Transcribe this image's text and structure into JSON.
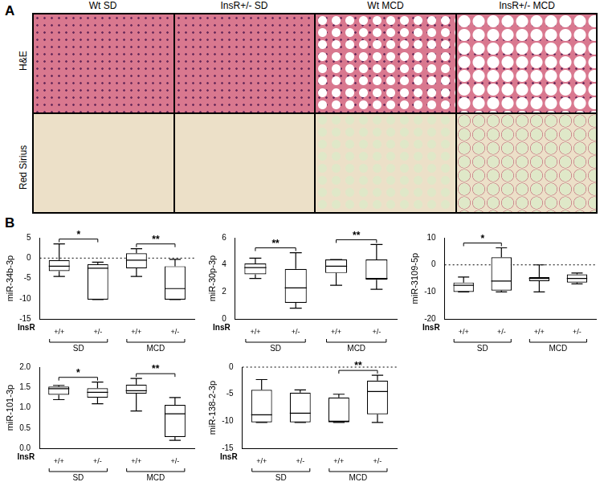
{
  "figure": {
    "panel_labels": [
      "A",
      "B"
    ],
    "histology": {
      "columns": [
        "Wt SD",
        "InsR+/- SD",
        "Wt MCD",
        "InsR+/- MCD"
      ],
      "rows": [
        "H&E",
        "Red Sirius"
      ]
    }
  },
  "chart_data": [
    {
      "type": "box",
      "y_label": "miR-34b-3p",
      "x_label": "InsR",
      "categories": [
        "+/+",
        "+/-",
        "+/+",
        "+/-"
      ],
      "groups": [
        {
          "label": "SD",
          "members": [
            0,
            1
          ]
        },
        {
          "label": "MCD",
          "members": [
            2,
            3
          ]
        }
      ],
      "boxes": [
        {
          "min": -4.5,
          "q1": -3.2,
          "median": -2.0,
          "q3": -0.5,
          "max": 3.5
        },
        {
          "min": -10.2,
          "q1": -10.2,
          "median": -2.5,
          "q3": -1.5,
          "max": -1.0
        },
        {
          "min": -4.5,
          "q1": -2.5,
          "median": -0.5,
          "q3": 1.2,
          "max": 2.3
        },
        {
          "min": -10.2,
          "q1": -10.2,
          "median": -7.5,
          "q3": -2.0,
          "max": -0.3
        }
      ],
      "significance": [
        {
          "pair": [
            0,
            1
          ],
          "label": "*"
        },
        {
          "pair": [
            2,
            3
          ],
          "label": "**"
        }
      ],
      "reference_line": 0,
      "ylim": [
        -15,
        5
      ],
      "yticks": [
        -15,
        -10,
        -5,
        0,
        5
      ],
      "grid": false
    },
    {
      "type": "box",
      "y_label": "miR-30p-3p",
      "x_label": "InsR",
      "categories": [
        "+/+",
        "+/-",
        "+/+",
        "+/-"
      ],
      "groups": [
        {
          "label": "SD",
          "members": [
            0,
            1
          ]
        },
        {
          "label": "MCD",
          "members": [
            2,
            3
          ]
        }
      ],
      "boxes": [
        {
          "min": 3.0,
          "q1": 3.3,
          "median": 3.8,
          "q3": 4.1,
          "max": 4.5
        },
        {
          "min": 0.8,
          "q1": 1.2,
          "median": 2.3,
          "q3": 3.7,
          "max": 4.9
        },
        {
          "min": 2.5,
          "q1": 3.4,
          "median": 3.9,
          "q3": 4.4,
          "max": 4.4
        },
        {
          "min": 2.2,
          "q1": 2.9,
          "median": 3.0,
          "q3": 4.4,
          "max": 5.5
        }
      ],
      "significance": [
        {
          "pair": [
            0,
            1
          ],
          "label": "**"
        },
        {
          "pair": [
            2,
            3
          ],
          "label": "**"
        }
      ],
      "ylim": [
        0,
        6
      ],
      "yticks": [
        0,
        2,
        4,
        6
      ],
      "grid": false
    },
    {
      "type": "box",
      "y_label": "miR-3109-5p",
      "x_label": "InsR",
      "categories": [
        "+/+",
        "+/-",
        "+/+",
        "+/-"
      ],
      "groups": [
        {
          "label": "SD",
          "members": [
            0,
            1
          ]
        },
        {
          "label": "MCD",
          "members": [
            2,
            3
          ]
        }
      ],
      "boxes": [
        {
          "min": -10.0,
          "q1": -10.0,
          "median": -7.5,
          "q3": -6.5,
          "max": -4.5
        },
        {
          "min": -10.0,
          "q1": -9.5,
          "median": -6.0,
          "q3": 2.8,
          "max": 6.3
        },
        {
          "min": -10.0,
          "q1": -6.0,
          "median": -5.0,
          "q3": -4.5,
          "max": 0.0
        },
        {
          "min": -7.0,
          "q1": -6.5,
          "median": -5.0,
          "q3": -3.5,
          "max": -3.0
        }
      ],
      "significance": [
        {
          "pair": [
            0,
            1
          ],
          "label": "*"
        }
      ],
      "reference_line": 0,
      "ylim": [
        -20,
        10
      ],
      "yticks": [
        -20,
        -10,
        0,
        10
      ],
      "grid": false
    },
    {
      "type": "box",
      "y_label": "miR-101-3p",
      "x_label": "InsR",
      "categories": [
        "+/+",
        "+/-",
        "+/+",
        "+/-"
      ],
      "groups": [
        {
          "label": "SD",
          "members": [
            0,
            1
          ]
        },
        {
          "label": "MCD",
          "members": [
            2,
            3
          ]
        }
      ],
      "boxes": [
        {
          "min": 1.2,
          "q1": 1.32,
          "median": 1.47,
          "q3": 1.52,
          "max": 1.55
        },
        {
          "min": 1.1,
          "q1": 1.25,
          "median": 1.38,
          "q3": 1.48,
          "max": 1.63
        },
        {
          "min": 0.92,
          "q1": 1.35,
          "median": 1.42,
          "q3": 1.57,
          "max": 1.72
        },
        {
          "min": 0.2,
          "q1": 0.28,
          "median": 0.85,
          "q3": 1.07,
          "max": 1.25
        }
      ],
      "significance": [
        {
          "pair": [
            0,
            1
          ],
          "label": "*"
        },
        {
          "pair": [
            2,
            3
          ],
          "label": "**"
        }
      ],
      "ylim": [
        0,
        2
      ],
      "yticks": [
        {
          "value": 0,
          "label": "0.0"
        },
        {
          "value": 0.5,
          "label": "0.5"
        },
        {
          "value": 1,
          "label": "1.0"
        },
        {
          "value": 1.5,
          "label": "1.5"
        },
        {
          "value": 2,
          "label": "2.0"
        }
      ],
      "grid": false
    },
    {
      "type": "box",
      "y_label": "miR-138-2-3p",
      "x_label": "InsR",
      "categories": [
        "+/+",
        "+/-",
        "+/+",
        "+/-"
      ],
      "groups": [
        {
          "label": "SD",
          "members": [
            0,
            1
          ]
        },
        {
          "label": "MCD",
          "members": [
            2,
            3
          ]
        }
      ],
      "boxes": [
        {
          "min": -10.2,
          "q1": -10.2,
          "median": -8.8,
          "q3": -4.2,
          "max": -2.3
        },
        {
          "min": -10.2,
          "q1": -10.2,
          "median": -8.5,
          "q3": -4.7,
          "max": -4.2
        },
        {
          "min": -10.2,
          "q1": -10.2,
          "median": -10.0,
          "q3": -5.6,
          "max": -5.0
        },
        {
          "min": -10.2,
          "q1": -8.7,
          "median": -4.5,
          "q3": -2.5,
          "max": -1.5
        }
      ],
      "significance": [
        {
          "pair": [
            2,
            3
          ],
          "label": "**"
        }
      ],
      "reference_line": 0,
      "ylim": [
        -15,
        0
      ],
      "yticks": [
        -15,
        -10,
        -5,
        0
      ],
      "grid": false
    }
  ]
}
